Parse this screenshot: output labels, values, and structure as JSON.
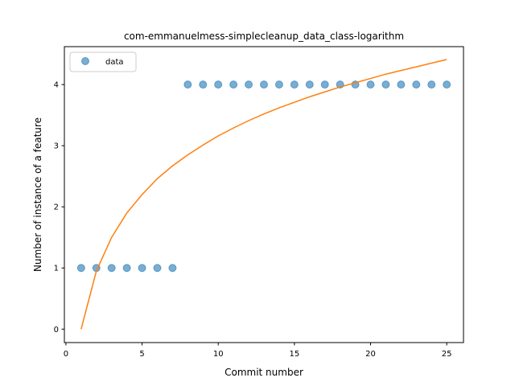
{
  "chart_data": {
    "type": "scatter",
    "title": "com-emmanuelmess-simplecleanup_data_class-logarithm",
    "xlabel": "Commit number",
    "ylabel": "Number of instance of a feature",
    "xlim": [
      -0.1,
      26.1
    ],
    "ylim": [
      -0.22,
      4.62
    ],
    "xticks": [
      0,
      5,
      10,
      15,
      20,
      25
    ],
    "yticks": [
      0,
      1,
      2,
      3,
      4
    ],
    "grid": false,
    "legend": {
      "placement": "upper-left",
      "entries": [
        "data"
      ]
    },
    "series": [
      {
        "name": "data",
        "kind": "scatter",
        "color": "#1f77b4",
        "x": [
          1,
          2,
          3,
          4,
          5,
          6,
          7,
          8,
          9,
          10,
          11,
          12,
          13,
          14,
          15,
          16,
          17,
          18,
          19,
          20,
          21,
          22,
          23,
          24,
          25
        ],
        "y": [
          1,
          1,
          1,
          1,
          1,
          1,
          1,
          4,
          4,
          4,
          4,
          4,
          4,
          4,
          4,
          4,
          4,
          4,
          4,
          4,
          4,
          4,
          4,
          4,
          4
        ]
      },
      {
        "kind": "line",
        "color": "#ff7f0e",
        "x": [
          1,
          2,
          3,
          4,
          5,
          6,
          7,
          8,
          9,
          10,
          11,
          12,
          13,
          14,
          15,
          16,
          17,
          18,
          19,
          20,
          21,
          22,
          23,
          24,
          25
        ],
        "y": [
          0.0,
          0.95,
          1.5,
          1.9,
          2.2,
          2.46,
          2.67,
          2.85,
          3.01,
          3.16,
          3.29,
          3.41,
          3.52,
          3.62,
          3.71,
          3.8,
          3.88,
          3.96,
          4.03,
          4.1,
          4.17,
          4.23,
          4.29,
          4.35,
          4.41
        ]
      }
    ]
  }
}
